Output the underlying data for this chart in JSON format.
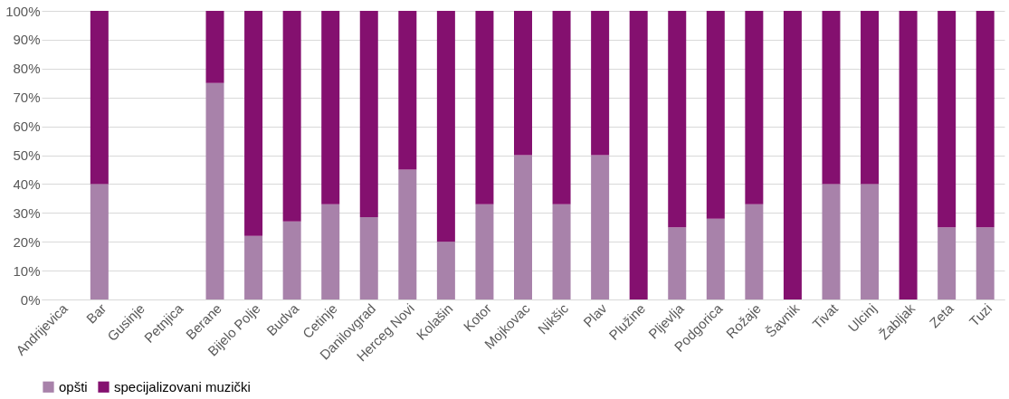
{
  "chart_data": {
    "type": "bar",
    "stacked": true,
    "categories": [
      "Andrijevica",
      "Bar",
      "Gusinje",
      "Petnjica",
      "Berane",
      "Bijelo Polje",
      "Budva",
      "Cetinje",
      "Danilovgrad",
      "Herceg Novi",
      "Kolašin",
      "Kotor",
      "Mojkovac",
      "Nikšic",
      "Plav",
      "Plužine",
      "Pljevlja",
      "Podgorica",
      "Rožaje",
      "Šavnik",
      "Tivat",
      "Ulcinj",
      "Žabljak",
      "Zeta",
      "Tuzi"
    ],
    "series": [
      {
        "name": "opšti",
        "color": "#a882aa",
        "values": [
          0,
          40,
          0,
          0,
          75,
          22,
          27,
          33,
          28.5,
          45,
          20,
          33,
          50,
          33,
          50,
          0,
          25,
          28,
          33,
          0,
          40,
          40,
          0,
          25,
          25
        ]
      },
      {
        "name": "specijalizovani muzički",
        "color": "#84106f",
        "values": [
          0,
          60,
          0,
          0,
          25,
          78,
          73,
          67,
          71.5,
          55,
          80,
          67,
          50,
          67,
          50,
          100,
          75,
          72,
          67,
          100,
          60,
          60,
          100,
          75,
          75
        ]
      }
    ],
    "ylim": [
      0,
      100
    ],
    "yticks": [
      {
        "value": 0,
        "label": "0%"
      },
      {
        "value": 10,
        "label": "10%"
      },
      {
        "value": 20,
        "label": "20%"
      },
      {
        "value": 30,
        "label": "30%"
      },
      {
        "value": 40,
        "label": "40%"
      },
      {
        "value": 50,
        "label": "50%"
      },
      {
        "value": 60,
        "label": "60%"
      },
      {
        "value": 70,
        "label": "70%"
      },
      {
        "value": 80,
        "label": "80%"
      },
      {
        "value": 90,
        "label": "90%"
      },
      {
        "value": 100,
        "label": "100%"
      }
    ],
    "grid": "y",
    "legend": "bottom"
  }
}
